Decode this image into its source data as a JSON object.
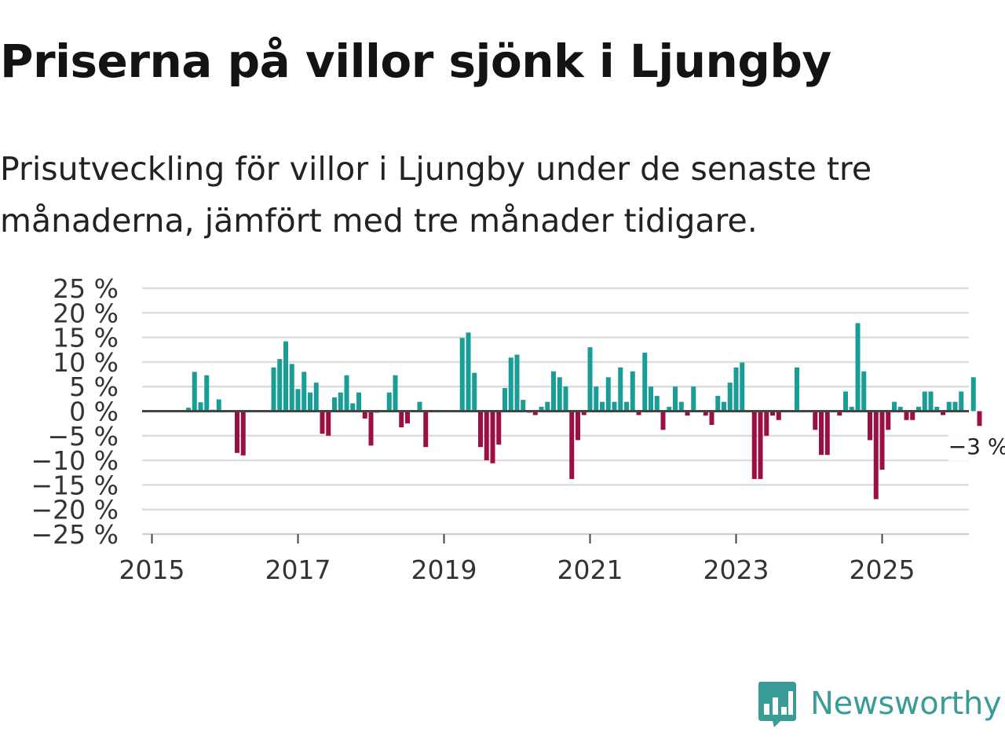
{
  "title": "Priserna på villor sjönk i Ljungby",
  "subtitle": "Prisutveckling för villor i Ljungby under de senaste tre månaderna, jämfört med tre månader tidigare.",
  "brand": "Newsworthy",
  "colors": {
    "positive": "#1a9c97",
    "negative": "#9b0f45",
    "grid": "#dddddd",
    "zero_line": "#444444",
    "brand": "#3a9c96"
  },
  "chart_data": {
    "type": "bar",
    "title": "Priserna på villor sjönk i Ljungby",
    "xlabel": "",
    "ylabel": "",
    "unit": "%",
    "ylim": [
      -25,
      25
    ],
    "y_ticks": [
      25,
      20,
      15,
      10,
      5,
      0,
      -5,
      -10,
      -15,
      -20,
      -25
    ],
    "y_tick_labels": [
      "25 %",
      "20 %",
      "15 %",
      "10 %",
      "5 %",
      "0 %",
      "−5 %",
      "−10 %",
      "−15 %",
      "−20 %",
      "−25 %"
    ],
    "x_ticks": [
      "2015",
      "2017",
      "2019",
      "2021",
      "2023",
      "2025"
    ],
    "start": "2015-01",
    "frequency": "monthly",
    "values": [
      0,
      0,
      0,
      0,
      0,
      0,
      0.7,
      8,
      1.8,
      7.3,
      0.3,
      2.4,
      0,
      0,
      -8.5,
      -9,
      0,
      0,
      0,
      0,
      8.9,
      10.6,
      14.2,
      9.6,
      4.5,
      8,
      3.8,
      5.8,
      -4.6,
      -5,
      2.8,
      3.8,
      7.3,
      1.6,
      3.8,
      -1.5,
      -7,
      -0.3,
      0,
      3.8,
      7.3,
      -3.3,
      -2.5,
      0,
      1.9,
      -7.3,
      0,
      0,
      0,
      0,
      0,
      14.9,
      16,
      7.8,
      -7.3,
      -10,
      -10.6,
      -6.8,
      4.7,
      10.9,
      11.5,
      2.3,
      -0.3,
      -0.8,
      0.9,
      1.9,
      8.1,
      6.9,
      5,
      -13.8,
      -5.9,
      -0.8,
      13,
      5,
      1.9,
      6.9,
      1.9,
      8.9,
      1.9,
      8.1,
      -0.8,
      11.9,
      5,
      3.1,
      -3.8,
      0.9,
      5,
      1.9,
      -0.9,
      5,
      0,
      -0.9,
      -2.8,
      3.1,
      1.9,
      5.8,
      8.9,
      9.9,
      0,
      -13.8,
      -13.8,
      -5,
      -0.9,
      -1.8,
      0,
      0,
      8.9,
      0,
      0,
      -3.8,
      -8.9,
      -8.9,
      0,
      -0.9,
      4,
      0.9,
      17.9,
      8.1,
      -5.9,
      -17.9,
      -11.9,
      -3.8,
      1.9,
      0.9,
      -1.8,
      -1.8,
      0.9,
      4,
      4,
      0.9,
      -0.8,
      1.9,
      1.9,
      4,
      0,
      6.9,
      -3
    ],
    "end_label": "−3 %",
    "legend": "none"
  }
}
